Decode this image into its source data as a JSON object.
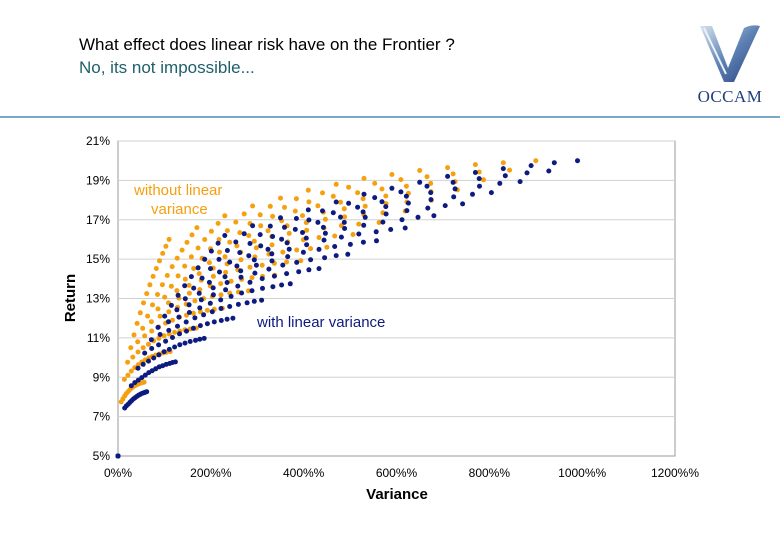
{
  "header": {
    "title": "What effect does linear risk have on the Frontier ?",
    "subtitle": "No, its not impossible...",
    "logo_text": "OCCAM"
  },
  "colors": {
    "without": "#f5a00f",
    "with": "#0d1a80",
    "subtitle": "#1f5f6b",
    "rule": "#7aa9c7"
  },
  "chart_data": {
    "type": "scatter",
    "title": "",
    "xlabel": "Variance",
    "ylabel": "Return",
    "xlim": [
      0,
      1200
    ],
    "ylim": [
      5,
      21
    ],
    "x_ticks": [
      0,
      200,
      400,
      600,
      800,
      1000,
      1200
    ],
    "x_tick_labels": [
      "0%%",
      "200%%",
      "400%%",
      "600%%",
      "800%%",
      "1000%%",
      "1200%%"
    ],
    "y_ticks": [
      5,
      7,
      9,
      11,
      13,
      15,
      17,
      19,
      21
    ],
    "y_tick_labels": [
      "5%",
      "7%",
      "9%",
      "11%",
      "13%",
      "15%",
      "17%",
      "19%",
      "21%"
    ],
    "grid": "horizontal",
    "series": [
      {
        "name": "without linear variance",
        "color": "#f5a00f",
        "description": "family of concave frontier curves starting at (0, 5%), endpoints rising from ~(110, 16%) to ~(900, 20%)",
        "curve_endpoints": [
          [
            110,
            16
          ],
          [
            170,
            16.6
          ],
          [
            230,
            17.2
          ],
          [
            290,
            17.7
          ],
          [
            350,
            18.1
          ],
          [
            410,
            18.5
          ],
          [
            470,
            18.8
          ],
          [
            530,
            19.1
          ],
          [
            590,
            19.3
          ],
          [
            650,
            19.5
          ],
          [
            710,
            19.65
          ],
          [
            770,
            19.8
          ],
          [
            830,
            19.9
          ],
          [
            900,
            20
          ]
        ]
      },
      {
        "name": "with linear variance",
        "color": "#0d1a80",
        "description": "family of concave frontier curves starting at (0, 5%), shifted to higher variance, endpoints ~(230, 16.2%) to ~(990, 20%)",
        "curve_endpoints": [
          [
            230,
            16.2
          ],
          [
            290,
            16.7
          ],
          [
            350,
            17.1
          ],
          [
            410,
            17.5
          ],
          [
            470,
            17.9
          ],
          [
            530,
            18.3
          ],
          [
            590,
            18.6
          ],
          [
            650,
            18.9
          ],
          [
            710,
            19.2
          ],
          [
            770,
            19.4
          ],
          [
            830,
            19.6
          ],
          [
            890,
            19.75
          ],
          [
            940,
            19.9
          ],
          [
            990,
            20
          ]
        ]
      }
    ],
    "annotations": [
      {
        "text_lines": [
          "without linear",
          "variance"
        ],
        "series": "without linear variance"
      },
      {
        "text_lines": [
          "with linear variance"
        ],
        "series": "with linear variance"
      }
    ]
  }
}
